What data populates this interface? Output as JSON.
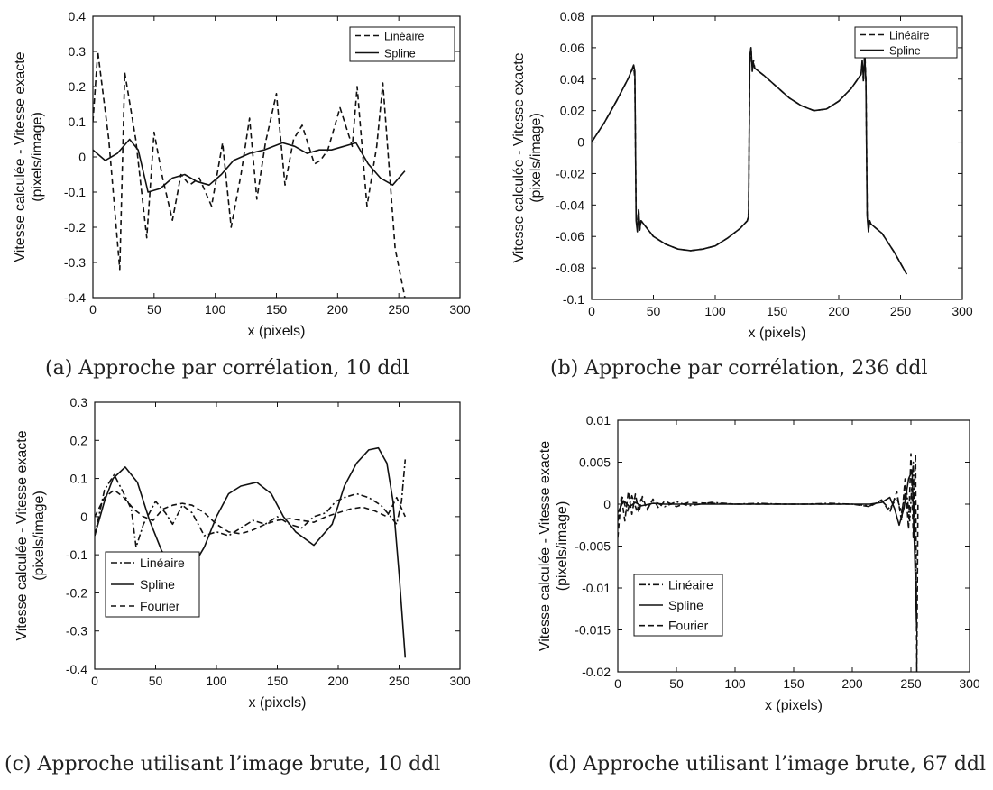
{
  "chart_data": [
    {
      "type": "line",
      "caption": "(a) Approche par corrélation, 10 ddl",
      "xlabel": "x (pixels)",
      "ylabel_line1": "Vitesse calculée - Vitesse exacte",
      "ylabel_line2": "(pixels/image)",
      "xlim": [
        0,
        300
      ],
      "ylim": [
        -0.4,
        0.4
      ],
      "xticks": [
        0,
        50,
        100,
        150,
        200,
        250,
        300
      ],
      "xtick_labels": [
        "0",
        "50",
        "100",
        "150",
        "200",
        "250",
        "300"
      ],
      "yticks": [
        -0.4,
        -0.3,
        -0.2,
        -0.1,
        0,
        0.1,
        0.2,
        0.3,
        0.4
      ],
      "ytick_labels": [
        "-0.4",
        "-0.3",
        "-0.2",
        "-0.1",
        "0",
        "0.1",
        "0.2",
        "0.3",
        "0.4"
      ],
      "legend_position": "top-right",
      "series": [
        {
          "name": "Linéaire",
          "style": "dashed",
          "x": [
            0,
            4,
            13,
            22,
            26,
            35,
            44,
            50,
            57,
            65,
            72,
            79,
            87,
            97,
            106,
            113,
            121,
            128,
            134,
            141,
            150,
            157,
            164,
            171,
            181,
            186,
            192,
            202,
            212,
            216,
            224,
            232,
            237,
            247,
            255
          ],
          "y": [
            0.1,
            0.3,
            0.05,
            -0.32,
            0.24,
            0.05,
            -0.23,
            0.07,
            -0.06,
            -0.18,
            -0.05,
            -0.08,
            -0.06,
            -0.14,
            0.04,
            -0.2,
            -0.05,
            0.11,
            -0.12,
            0.04,
            0.18,
            -0.08,
            0.05,
            0.09,
            -0.02,
            -0.01,
            0.02,
            0.14,
            0.03,
            0.2,
            -0.14,
            0.03,
            0.21,
            -0.26,
            -0.4
          ]
        },
        {
          "name": "Spline",
          "style": "solid",
          "x": [
            0,
            10,
            20,
            30,
            37,
            45,
            55,
            65,
            75,
            85,
            95,
            105,
            115,
            128,
            140,
            155,
            165,
            175,
            185,
            195,
            205,
            215,
            225,
            235,
            245,
            255
          ],
          "y": [
            0.02,
            -0.01,
            0.01,
            0.05,
            0.02,
            -0.1,
            -0.09,
            -0.06,
            -0.05,
            -0.07,
            -0.08,
            -0.05,
            -0.01,
            0.01,
            0.02,
            0.04,
            0.03,
            0.01,
            0.02,
            0.02,
            0.03,
            0.04,
            -0.02,
            -0.06,
            -0.08,
            -0.04
          ]
        }
      ]
    },
    {
      "type": "line",
      "caption": "(b) Approche par corrélation, 236 ddl",
      "xlabel": "x (pixels)",
      "ylabel_line1": "Vitesse calculée - Vitesse exacte",
      "ylabel_line2": "(pixels/image)",
      "xlim": [
        0,
        300
      ],
      "ylim": [
        -0.1,
        0.08
      ],
      "xticks": [
        0,
        50,
        100,
        150,
        200,
        250,
        300
      ],
      "xtick_labels": [
        "0",
        "50",
        "100",
        "150",
        "200",
        "250",
        "300"
      ],
      "yticks": [
        -0.1,
        -0.08,
        -0.06,
        -0.04,
        -0.02,
        0,
        0.02,
        0.04,
        0.06,
        0.08
      ],
      "ytick_labels": [
        "-0.1",
        "-0.08",
        "-0.06",
        "-0.04",
        "-0.02",
        "0",
        "0.02",
        "0.04",
        "0.06",
        "0.08"
      ],
      "legend_position": "top-right",
      "series": [
        {
          "name": "Linéaire",
          "style": "dashed",
          "x": [
            0,
            10,
            20,
            30,
            34,
            35,
            36,
            37,
            38,
            39,
            40,
            50,
            60,
            70,
            80,
            90,
            100,
            110,
            120,
            126,
            127,
            128,
            129,
            130,
            131,
            132,
            140,
            150,
            160,
            170,
            180,
            190,
            200,
            210,
            218,
            219,
            220,
            221,
            222,
            223,
            224,
            225,
            226,
            235,
            245,
            255
          ],
          "y": [
            0.0,
            0.012,
            0.026,
            0.041,
            0.048,
            0.04,
            -0.045,
            -0.055,
            -0.042,
            -0.056,
            -0.05,
            -0.06,
            -0.065,
            -0.068,
            -0.069,
            -0.068,
            -0.066,
            -0.061,
            -0.055,
            -0.05,
            -0.045,
            0.05,
            0.06,
            0.045,
            0.052,
            0.047,
            0.042,
            0.035,
            0.028,
            0.023,
            0.02,
            0.021,
            0.026,
            0.034,
            0.043,
            0.05,
            0.038,
            0.058,
            0.04,
            -0.045,
            -0.056,
            -0.05,
            -0.052,
            -0.058,
            -0.07,
            -0.084
          ]
        },
        {
          "name": "Spline",
          "style": "solid",
          "x": [
            0,
            10,
            20,
            30,
            34,
            35,
            36,
            37,
            38,
            39,
            40,
            50,
            60,
            70,
            80,
            90,
            100,
            110,
            120,
            126,
            127,
            128,
            129,
            130,
            131,
            132,
            140,
            150,
            160,
            170,
            180,
            190,
            200,
            210,
            218,
            219,
            220,
            221,
            222,
            223,
            224,
            225,
            226,
            235,
            245,
            255
          ],
          "y": [
            0.0,
            0.012,
            0.026,
            0.041,
            0.049,
            0.045,
            -0.05,
            -0.057,
            -0.043,
            -0.055,
            -0.05,
            -0.06,
            -0.065,
            -0.068,
            -0.069,
            -0.068,
            -0.066,
            -0.061,
            -0.055,
            -0.05,
            -0.047,
            0.055,
            0.06,
            0.046,
            0.05,
            0.047,
            0.042,
            0.035,
            0.028,
            0.023,
            0.02,
            0.021,
            0.026,
            0.034,
            0.043,
            0.052,
            0.04,
            0.055,
            0.038,
            -0.047,
            -0.057,
            -0.05,
            -0.052,
            -0.058,
            -0.07,
            -0.084
          ]
        }
      ]
    },
    {
      "type": "line",
      "caption": "(c) Approche utilisant l’image brute, 10 ddl",
      "xlabel": "x (pixels)",
      "ylabel_line1": "Vitesse calculée - Vitesse exacte",
      "ylabel_line2": "(pixels/image)",
      "xlim": [
        0,
        300
      ],
      "ylim": [
        -0.4,
        0.3
      ],
      "xticks": [
        0,
        50,
        100,
        150,
        200,
        250,
        300
      ],
      "xtick_labels": [
        "0",
        "50",
        "100",
        "150",
        "200",
        "250",
        "300"
      ],
      "yticks": [
        -0.4,
        -0.3,
        -0.2,
        -0.1,
        0,
        0.1,
        0.2,
        0.3
      ],
      "ytick_labels": [
        "-0.4",
        "-0.3",
        "-0.2",
        "-0.1",
        "0",
        "0.1",
        "0.2",
        "0.3"
      ],
      "legend_position": "bottom-left",
      "series": [
        {
          "name": "Linéaire",
          "style": "dashdot",
          "x": [
            0,
            8,
            16,
            24,
            30,
            34,
            40,
            50,
            58,
            64,
            72,
            80,
            90,
            100,
            110,
            120,
            130,
            140,
            150,
            160,
            170,
            180,
            190,
            198,
            205,
            215,
            225,
            235,
            243,
            248,
            252,
            255
          ],
          "y": [
            -0.05,
            0.07,
            0.11,
            0.06,
            0.02,
            -0.08,
            -0.02,
            0.04,
            0.01,
            -0.02,
            0.03,
            0.01,
            -0.05,
            -0.04,
            -0.05,
            -0.03,
            -0.01,
            -0.02,
            0.0,
            -0.02,
            -0.03,
            0.0,
            0.01,
            0.04,
            0.05,
            0.06,
            0.05,
            0.03,
            0.0,
            -0.02,
            0.04,
            0.15
          ]
        },
        {
          "name": "Spline",
          "style": "solid",
          "x": [
            0,
            8,
            15,
            25,
            35,
            45,
            55,
            65,
            78,
            90,
            100,
            110,
            120,
            133,
            145,
            155,
            165,
            180,
            195,
            205,
            215,
            225,
            233,
            240,
            245,
            250,
            255
          ],
          "y": [
            -0.05,
            0.04,
            0.1,
            0.13,
            0.09,
            -0.01,
            -0.09,
            -0.13,
            -0.145,
            -0.08,
            0.0,
            0.06,
            0.08,
            0.09,
            0.06,
            0.0,
            -0.04,
            -0.075,
            -0.02,
            0.08,
            0.14,
            0.175,
            0.18,
            0.14,
            0.04,
            -0.15,
            -0.37
          ]
        },
        {
          "name": "Fourier",
          "style": "dashed",
          "x": [
            0,
            8,
            16,
            24,
            32,
            40,
            48,
            56,
            64,
            72,
            80,
            90,
            100,
            110,
            120,
            130,
            140,
            150,
            160,
            170,
            180,
            190,
            200,
            210,
            220,
            230,
            240,
            248,
            255
          ],
          "y": [
            0.0,
            0.05,
            0.07,
            0.05,
            0.02,
            0.0,
            -0.01,
            0.02,
            0.03,
            0.035,
            0.03,
            0.01,
            -0.02,
            -0.04,
            -0.045,
            -0.035,
            -0.02,
            -0.01,
            -0.005,
            -0.01,
            -0.015,
            0.0,
            0.01,
            0.02,
            0.025,
            0.015,
            0.0,
            0.05,
            0.0
          ]
        }
      ]
    },
    {
      "type": "line",
      "caption": "(d) Approche utilisant l’image brute, 67 ddl",
      "xlabel": "x (pixels)",
      "ylabel_line1": "Vitesse calculée - Vitesse exacte",
      "ylabel_line2": "(pixels/image)",
      "xlim": [
        0,
        300
      ],
      "ylim": [
        -0.02,
        0.01
      ],
      "xticks": [
        0,
        50,
        100,
        150,
        200,
        250,
        300
      ],
      "xtick_labels": [
        "0",
        "50",
        "100",
        "150",
        "200",
        "250",
        "300"
      ],
      "yticks": [
        -0.02,
        -0.015,
        -0.01,
        -0.005,
        0,
        0.005,
        0.01
      ],
      "ytick_labels": [
        "-0.02",
        "-0.015",
        "-0.01",
        "-0.005",
        "0",
        "0.005",
        "0.01"
      ],
      "legend_position": "bottom-left",
      "series": [
        {
          "name": "Linéaire",
          "style": "dashdot",
          "x": [
            0,
            4,
            8,
            12,
            16,
            20,
            25,
            30,
            40,
            50,
            60,
            80,
            100,
            120,
            140,
            160,
            180,
            200,
            215,
            225,
            232,
            238,
            242,
            246,
            249,
            252,
            254,
            255
          ],
          "y": [
            -0.002,
            0.0008,
            -0.001,
            0.001,
            -0.0007,
            0.0006,
            -0.0005,
            0.0004,
            -0.0003,
            0.0003,
            -0.0002,
            0.0002,
            0.0,
            0.0001,
            0.0,
            0.0,
            0.0001,
            0.0,
            -0.0002,
            0.0004,
            -0.0006,
            0.0008,
            -0.001,
            0.002,
            -0.002,
            0.005,
            -0.008,
            -0.015
          ]
        },
        {
          "name": "Spline",
          "style": "solid",
          "x": [
            0,
            5,
            10,
            15,
            20,
            30,
            40,
            60,
            80,
            100,
            120,
            140,
            160,
            180,
            200,
            215,
            225,
            232,
            236,
            240,
            244,
            248,
            251,
            253,
            255
          ],
          "y": [
            -0.001,
            0.0004,
            -0.0003,
            0.0002,
            -0.0002,
            0.0001,
            0.0,
            0.0,
            0.0,
            0.0,
            0.0,
            0.0,
            0.0,
            0.0,
            0.0,
            0.0,
            0.0002,
            0.0008,
            -0.0005,
            -0.0025,
            -0.0005,
            0.003,
            0.004,
            -0.005,
            -0.015
          ]
        },
        {
          "name": "Fourier",
          "style": "dashed",
          "x": [
            0,
            3,
            6,
            9,
            12,
            15,
            18,
            21,
            25,
            30,
            35,
            40,
            50,
            60,
            80,
            100,
            120,
            140,
            160,
            180,
            200,
            215,
            225,
            232,
            238,
            242,
            245,
            248,
            250,
            252,
            254,
            255,
            256
          ],
          "y": [
            -0.004,
            0.001,
            -0.002,
            0.0015,
            -0.0012,
            0.0012,
            -0.001,
            0.0009,
            -0.0007,
            0.0006,
            -0.0005,
            0.0004,
            -0.0003,
            0.0002,
            0.0001,
            0.0,
            0.0,
            0.0,
            0.0,
            0.0,
            0.0,
            -0.0003,
            0.0005,
            -0.001,
            0.0015,
            -0.002,
            0.003,
            -0.003,
            0.006,
            -0.004,
            0.006,
            -0.02,
            0.0
          ]
        }
      ]
    }
  ]
}
